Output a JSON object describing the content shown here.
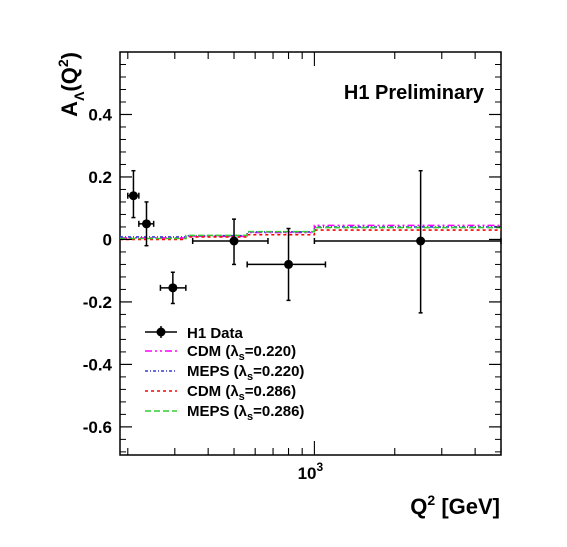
{
  "chart_data": {
    "type": "scatter",
    "annotation": "H1 Preliminary",
    "xlabel": {
      "base": "Q",
      "sup": "2",
      "unit": " [GeV]"
    },
    "ylabel": {
      "base": "A",
      "sub": "Λ",
      "arg_open": "(Q",
      "arg_sup": "2",
      "arg_close": ")"
    },
    "x_scale": "log",
    "xlim": [
      187,
      5000
    ],
    "ylim": [
      -0.69,
      0.6
    ],
    "x_tick_labels": [
      {
        "value": 1000,
        "base": "10",
        "exp": "3"
      }
    ],
    "y_ticks": [
      {
        "value": -0.6,
        "label": "-0.6"
      },
      {
        "value": -0.4,
        "label": "-0.4"
      },
      {
        "value": -0.2,
        "label": "-0.2"
      },
      {
        "value": 0,
        "label": "0"
      },
      {
        "value": 0.2,
        "label": "0.2"
      },
      {
        "value": 0.4,
        "label": "0.4"
      }
    ],
    "data_series": {
      "name": "H1 Data",
      "color": "#000000",
      "points": [
        {
          "x": 210,
          "y": 0.14,
          "xlo": 200,
          "xhi": 220,
          "ylo": 0.07,
          "yhi": 0.22
        },
        {
          "x": 235,
          "y": 0.05,
          "xlo": 220,
          "xhi": 250,
          "ylo": -0.02,
          "yhi": 0.12
        },
        {
          "x": 295,
          "y": -0.155,
          "xlo": 265,
          "xhi": 330,
          "ylo": -0.205,
          "yhi": -0.105
        },
        {
          "x": 500,
          "y": -0.005,
          "xlo": 350,
          "xhi": 670,
          "ylo": -0.08,
          "yhi": 0.065
        },
        {
          "x": 800,
          "y": -0.08,
          "xlo": 560,
          "xhi": 1100,
          "ylo": -0.195,
          "yhi": 0.035
        },
        {
          "x": 2500,
          "y": -0.005,
          "xlo": 1000,
          "xhi": 5000,
          "ylo": -0.235,
          "yhi": 0.22
        }
      ]
    },
    "model_series": [
      {
        "name": "CDM (λs=0.220)",
        "label_main": "CDM (λ",
        "label_sub": "s",
        "label_tail": "=0.220)",
        "color": "#ff00ff",
        "dash": "7,3,2,3,2,3",
        "bins": [
          {
            "x0": 187,
            "x1": 330,
            "y": 0.005
          },
          {
            "x0": 330,
            "x1": 560,
            "y": 0.01
          },
          {
            "x0": 560,
            "x1": 1000,
            "y": 0.022
          },
          {
            "x0": 1000,
            "x1": 5000,
            "y": 0.045
          }
        ]
      },
      {
        "name": "MEPS (λs=0.220)",
        "label_main": "MEPS (λ",
        "label_sub": "s",
        "label_tail": "=0.220)",
        "color": "#3a3ad0",
        "dash": "3,2,1,2",
        "bins": [
          {
            "x0": 187,
            "x1": 330,
            "y": 0.008
          },
          {
            "x0": 330,
            "x1": 560,
            "y": 0.012
          },
          {
            "x0": 560,
            "x1": 1000,
            "y": 0.024
          },
          {
            "x0": 1000,
            "x1": 5000,
            "y": 0.04
          }
        ]
      },
      {
        "name": "CDM (λs=0.286)",
        "label_main": "CDM (λ",
        "label_sub": "s",
        "label_tail": "=0.286)",
        "color": "#ff0000",
        "dash": "3,3",
        "bins": [
          {
            "x0": 187,
            "x1": 330,
            "y": 0.0
          },
          {
            "x0": 330,
            "x1": 560,
            "y": 0.008
          },
          {
            "x0": 560,
            "x1": 1000,
            "y": 0.015
          },
          {
            "x0": 1000,
            "x1": 5000,
            "y": 0.03
          }
        ]
      },
      {
        "name": "MEPS (λs=0.286)",
        "label_main": "MEPS (λ",
        "label_sub": "s",
        "label_tail": "=0.286)",
        "color": "#33cc33",
        "dash": "6,3",
        "bins": [
          {
            "x0": 187,
            "x1": 330,
            "y": 0.003
          },
          {
            "x0": 330,
            "x1": 560,
            "y": 0.013
          },
          {
            "x0": 560,
            "x1": 1000,
            "y": 0.025
          },
          {
            "x0": 1000,
            "x1": 5000,
            "y": 0.038
          }
        ]
      }
    ],
    "legend_position": "bottom-left",
    "grid": false
  }
}
